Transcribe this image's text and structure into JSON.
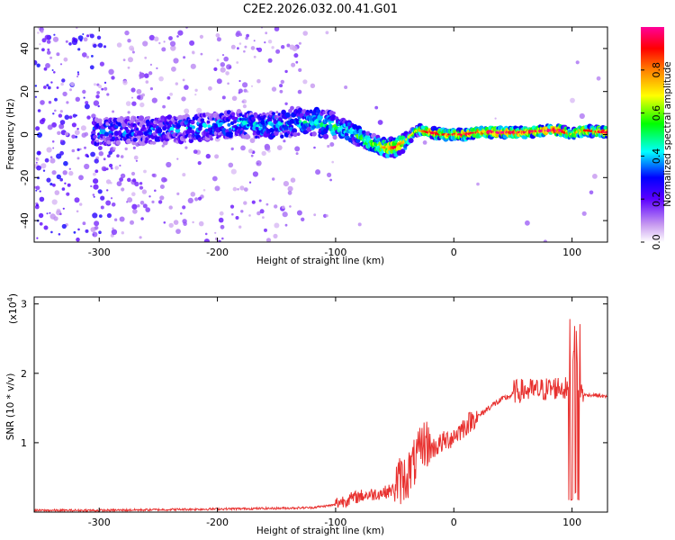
{
  "title": "C2E2.2026.032.00.41.G01",
  "colors": {
    "snr_line": "#e8312f",
    "spectro_background": "#ffffff",
    "axis": "#000000"
  },
  "chart_data": [
    {
      "type": "heatmap",
      "name": "spectrogram",
      "xlabel": "Height of straight line (km)",
      "ylabel": "Frequency (Hz)",
      "xlim": [
        -355,
        130
      ],
      "ylim": [
        -50,
        50
      ],
      "xticks": [
        -300,
        -200,
        -100,
        0,
        100
      ],
      "yticks": [
        -40,
        -20,
        0,
        20,
        40
      ],
      "grid": false,
      "colorbar": {
        "label": "Normalized spectral amplitude",
        "range": [
          0.0,
          1.0
        ],
        "ticks": [
          0.0,
          0.2,
          0.4,
          0.6,
          0.8
        ],
        "colormap": "rainbow (white-violet-blue-cyan-green-yellow-orange-red-magenta)"
      },
      "ridge": {
        "x": [
          -305,
          -280,
          -250,
          -220,
          -200,
          -180,
          -160,
          -140,
          -120,
          -100,
          -90,
          -80,
          -70,
          -60,
          -50,
          -40,
          -35,
          -30,
          -20,
          -10,
          0,
          10,
          20,
          40,
          60,
          80,
          90,
          100,
          110,
          130
        ],
        "y": [
          1,
          2,
          2,
          3,
          4,
          5,
          4,
          5,
          6,
          4,
          2,
          -1,
          -4,
          -6,
          -6,
          -3,
          0,
          2,
          1,
          0,
          0,
          0,
          1,
          1,
          1,
          2,
          2,
          0,
          2,
          1
        ],
        "amplitude": [
          0.35,
          0.3,
          0.3,
          0.35,
          0.35,
          0.4,
          0.4,
          0.4,
          0.45,
          0.5,
          0.5,
          0.5,
          0.55,
          0.65,
          0.85,
          0.6,
          0.6,
          0.6,
          0.85,
          0.8,
          0.85,
          0.85,
          0.85,
          0.9,
          0.85,
          0.9,
          0.95,
          0.6,
          0.8,
          0.85
        ]
      }
    },
    {
      "type": "line",
      "name": "snr",
      "xlabel": "Height of straight line (km)",
      "ylabel": "SNR (10 * v/v)",
      "y_multiplier": "(x10^4)",
      "multiplier_base": "(x10",
      "multiplier_exp": "4",
      "multiplier_close": ")",
      "xlim": [
        -355,
        130
      ],
      "ylim": [
        0,
        3.1
      ],
      "xticks": [
        -300,
        -200,
        -100,
        0,
        100
      ],
      "yticks": [
        1,
        2,
        3
      ],
      "grid": false,
      "series": [
        {
          "x": [
            -355,
            -300,
            -250,
            -200,
            -150,
            -120,
            -100,
            -80,
            -60,
            -50,
            -40,
            -30,
            -25,
            -20,
            -10,
            0,
            10,
            20,
            30,
            40,
            50,
            60,
            70,
            80,
            90,
            95,
            100,
            103,
            105,
            110,
            120,
            130
          ],
          "y": [
            0.02,
            0.02,
            0.03,
            0.04,
            0.05,
            0.06,
            0.1,
            0.2,
            0.25,
            0.3,
            0.4,
            0.7,
            0.9,
            0.85,
            0.95,
            1.05,
            1.2,
            1.35,
            1.5,
            1.6,
            1.68,
            1.7,
            1.7,
            1.72,
            1.75,
            1.72,
            1.75,
            2.9,
            1.7,
            1.68,
            1.68,
            1.65
          ]
        }
      ]
    }
  ]
}
